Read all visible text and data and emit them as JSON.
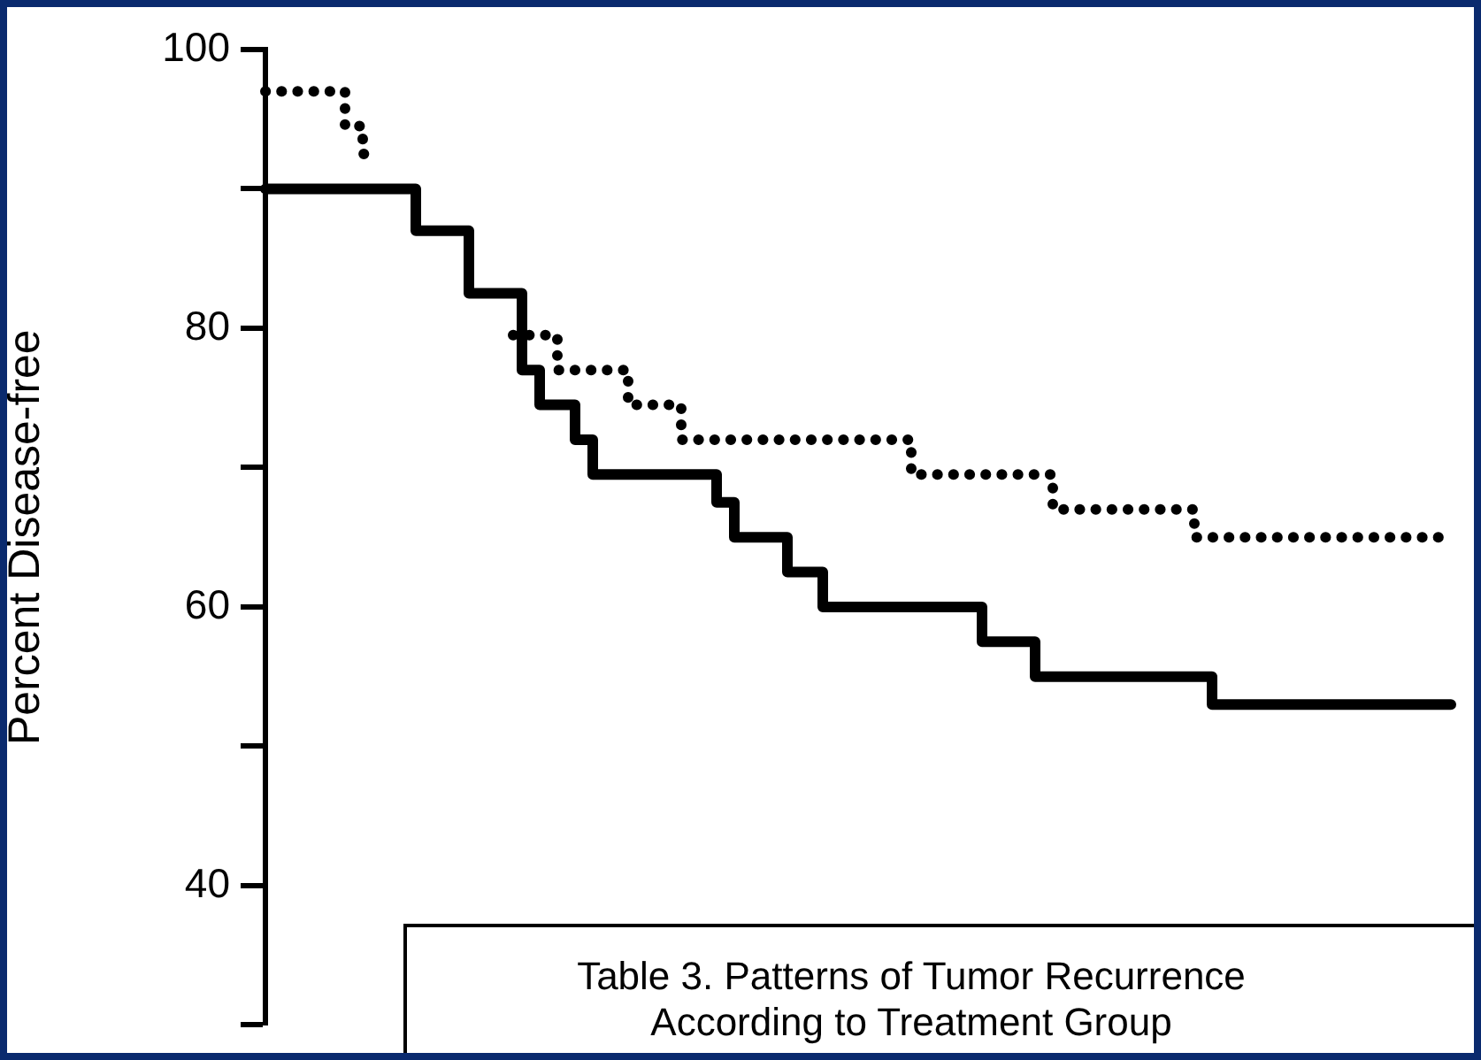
{
  "chart_data": {
    "type": "step",
    "ylabel": "Percent Disease-free",
    "annotations": [
      "Table 3. Patterns of Tumor Recurrence",
      "According to Treatment Group"
    ],
    "categories": [
      null,
      null,
      null,
      null,
      null,
      null,
      null,
      null,
      null,
      null,
      null,
      null,
      null,
      null,
      null,
      null,
      null,
      null,
      null,
      null,
      null,
      null,
      null,
      null,
      null,
      null,
      null,
      null,
      null,
      null,
      null,
      null,
      null,
      null,
      null,
      null,
      null,
      null,
      null,
      null,
      null,
      null,
      null,
      null,
      null,
      null,
      null,
      null,
      null,
      null,
      null,
      null,
      null,
      null,
      null,
      null,
      null,
      null,
      null,
      null,
      null,
      null,
      null,
      null,
      null,
      null,
      null,
      null
    ],
    "series": [
      {
        "color": "#000000",
        "line_style": "solid",
        "values": [
          90,
          90,
          90,
          90,
          90,
          90,
          90,
          90,
          90,
          87,
          87,
          87,
          82.5,
          82.5,
          82.5,
          77,
          74.5,
          74.5,
          72,
          69.5,
          69.5,
          69.5,
          69.5,
          69.5,
          69.5,
          69.5,
          67.5,
          65,
          65,
          65,
          62.5,
          62.5,
          60,
          60,
          60,
          60,
          60,
          60,
          60,
          60,
          60,
          57.5,
          57.5,
          57.5,
          55,
          55,
          55,
          55,
          55,
          55,
          55,
          55,
          55,
          55,
          53,
          53,
          53,
          53,
          53,
          53,
          53,
          53,
          53,
          53,
          53,
          53,
          53,
          53
        ]
      },
      {
        "color": "#000000",
        "line_style": "dotted",
        "values": [
          97,
          97,
          97,
          97,
          97,
          94.5,
          92.5,
          null,
          null,
          null,
          null,
          null,
          null,
          null,
          79.5,
          79.5,
          79.5,
          77,
          77,
          77,
          77,
          74.5,
          74.5,
          74.5,
          72,
          72,
          72,
          72,
          72,
          72,
          72,
          72,
          72,
          72,
          72,
          72,
          72,
          69.5,
          69.5,
          69.5,
          69.5,
          69.5,
          69.5,
          69.5,
          69.5,
          67,
          67,
          67,
          67,
          67,
          67,
          67,
          67,
          65,
          65,
          65,
          65,
          65,
          65,
          65,
          65,
          65,
          65,
          65,
          65,
          65,
          65,
          65
        ]
      }
    ],
    "ylim": [
      30,
      100
    ],
    "yticks": [
      100,
      {
        "value": 90,
        "label": null
      },
      80,
      {
        "value": 70,
        "label": null
      },
      60,
      {
        "value": 50,
        "label": null
      },
      40,
      {
        "value": 30,
        "label": null
      }
    ],
    "tick_labels": "y",
    "marker": "none",
    "legend": false,
    "grid": false
  }
}
